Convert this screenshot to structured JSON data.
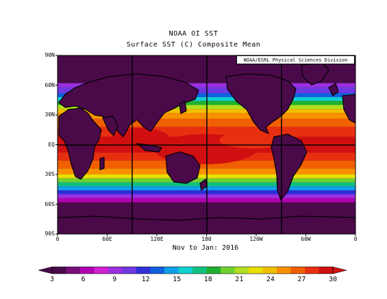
{
  "title": "NOAA OI SST",
  "subtitle": "Surface SST (C) Composite Mean",
  "credit": "NOAA/ESRL Physical Sciences Division",
  "period": "Nov to Jan: 2016",
  "lat_ticks": [
    {
      "label": "90N",
      "lat": 90
    },
    {
      "label": "60N",
      "lat": 60
    },
    {
      "label": "30N",
      "lat": 30
    },
    {
      "label": "EQ",
      "lat": 0
    },
    {
      "label": "30S",
      "lat": -30
    },
    {
      "label": "60S",
      "lat": -60
    },
    {
      "label": "90S",
      "lat": -90
    }
  ],
  "lon_ticks": [
    {
      "label": "0",
      "lon": 0
    },
    {
      "label": "60E",
      "lon": 60
    },
    {
      "label": "120E",
      "lon": 120
    },
    {
      "label": "180",
      "lon": 180
    },
    {
      "label": "120W",
      "lon": 240
    },
    {
      "label": "60W",
      "lon": 300
    },
    {
      "label": "0",
      "lon": 360
    }
  ],
  "colorbar": {
    "labels": [
      "3",
      "6",
      "9",
      "12",
      "15",
      "18",
      "21",
      "24",
      "27",
      "30"
    ],
    "colors": [
      "#4a0a4a",
      "#7a0f7a",
      "#b000b0",
      "#d020d0",
      "#9a30e0",
      "#7038e0",
      "#3030d8",
      "#1060e0",
      "#10a0e8",
      "#10d0d0",
      "#10c080",
      "#20b030",
      "#70d030",
      "#b0e020",
      "#e8e000",
      "#f0c000",
      "#f89000",
      "#f06000",
      "#e83010",
      "#d01010"
    ],
    "min": 3,
    "max": 30
  },
  "map_colors": {
    "land": "#4a0a4a",
    "ice": "#4a0a4a"
  }
}
